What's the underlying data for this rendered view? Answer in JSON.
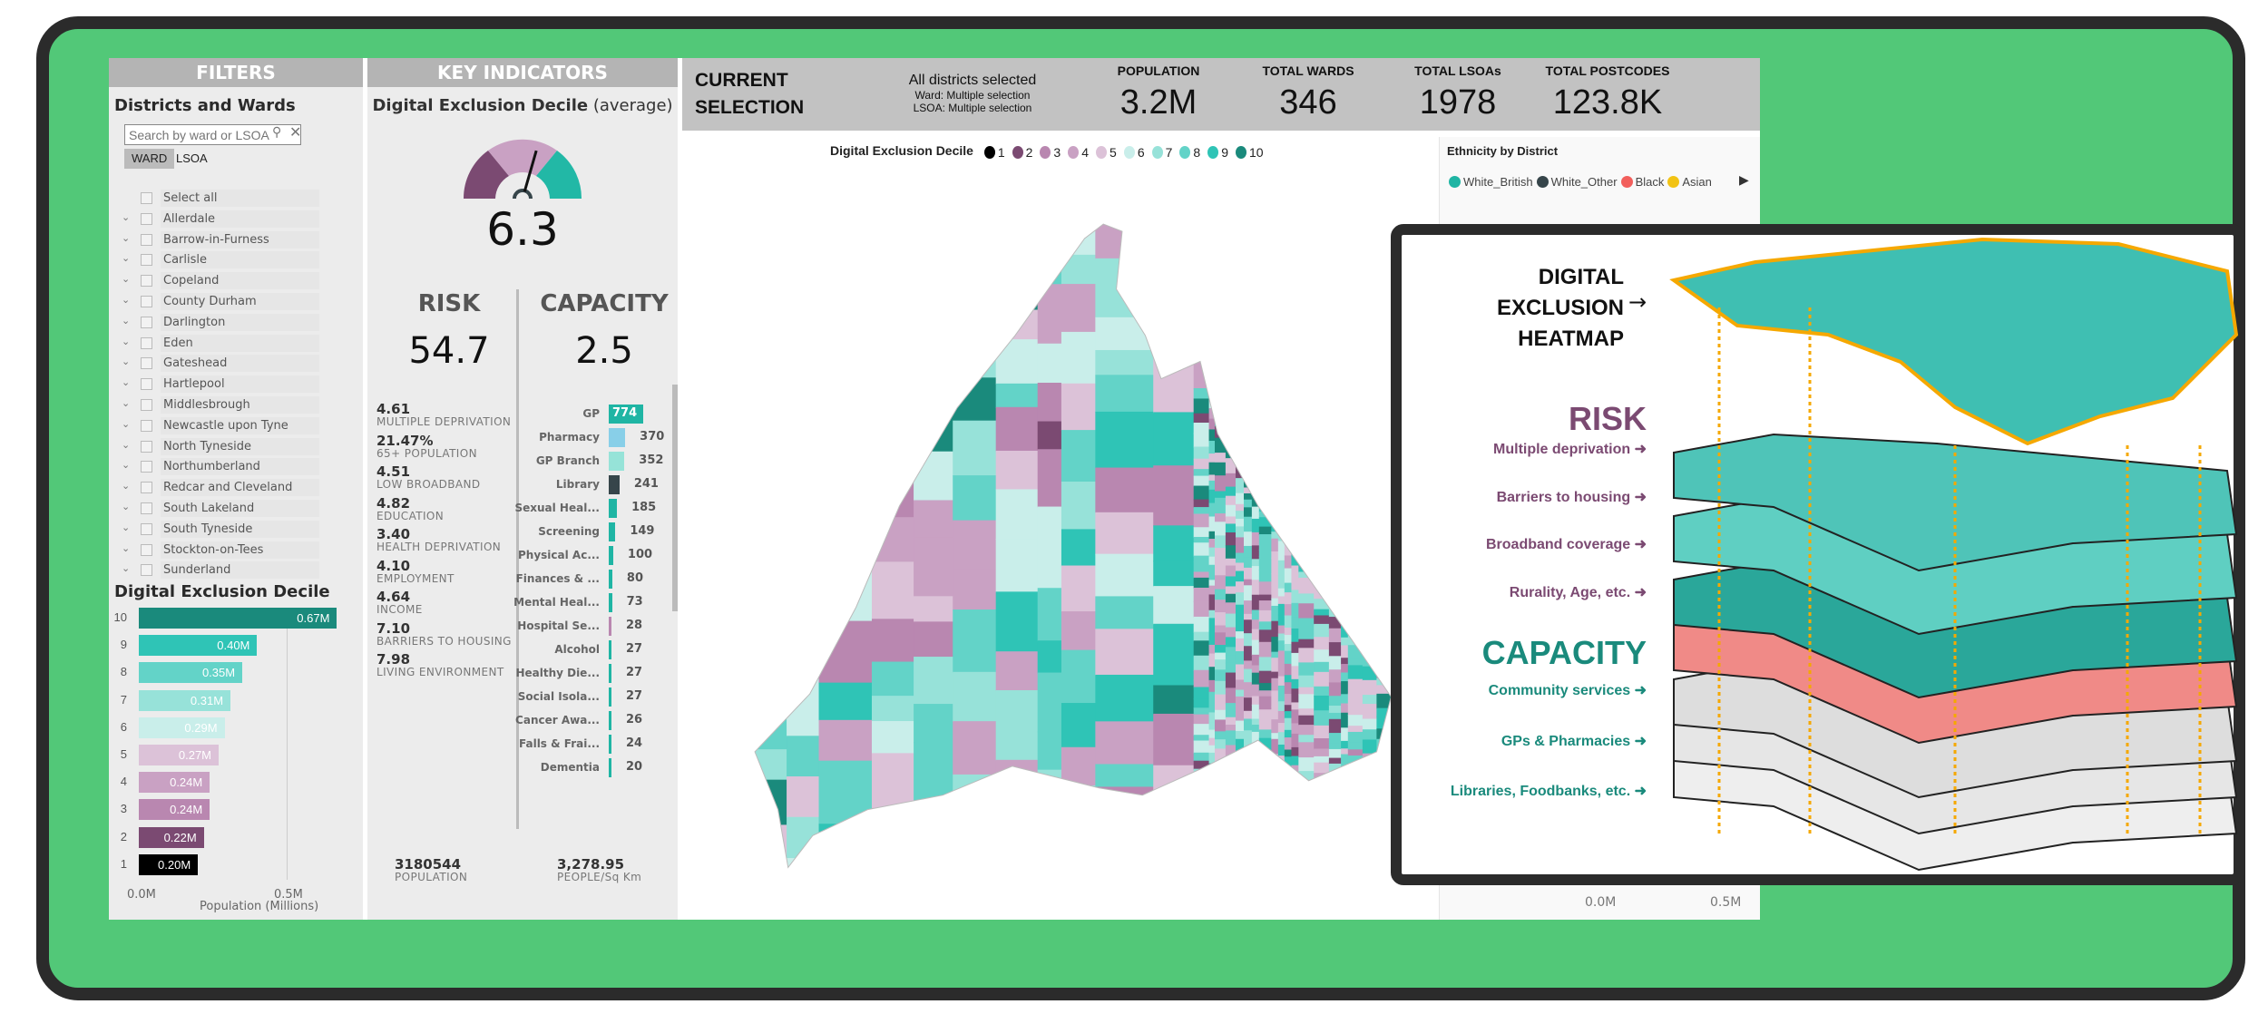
{
  "palette": {
    "1": "#000000",
    "2": "#7b4a72",
    "3": "#b987b0",
    "4": "#c9a1c3",
    "5": "#dcc2d8",
    "6": "#c9eeea",
    "7": "#97e2d9",
    "8": "#63d3c8",
    "9": "#2fc4b6",
    "10": "#1a8a7c"
  },
  "filters": {
    "header": "FILTERS",
    "title": "Districts and Wards",
    "search_placeholder": "Search by ward or LSOA",
    "toggle": [
      "WARD",
      "LSOA"
    ],
    "toggle_selected": "WARD",
    "items": [
      "Select all",
      "Allerdale",
      "Barrow-in-Furness",
      "Carlisle",
      "Copeland",
      "County Durham",
      "Darlington",
      "Eden",
      "Gateshead",
      "Hartlepool",
      "Middlesbrough",
      "Newcastle upon Tyne",
      "North Tyneside",
      "Northumberland",
      "Redcar and Cleveland",
      "South Lakeland",
      "South Tyneside",
      "Stockton-on-Tees",
      "Sunderland"
    ]
  },
  "chart_data": {
    "type": "bar",
    "orientation": "horizontal",
    "title": "Digital Exclusion Decile",
    "xlabel": "Population (Millions)",
    "xlim": [
      0,
      0.7
    ],
    "xticks": [
      "0.0M",
      "0.5M"
    ],
    "categories": [
      "10",
      "9",
      "8",
      "7",
      "6",
      "5",
      "4",
      "3",
      "2",
      "1"
    ],
    "values": [
      0.67,
      0.4,
      0.35,
      0.31,
      0.29,
      0.27,
      0.24,
      0.24,
      0.22,
      0.2
    ],
    "labels": [
      "0.67M",
      "0.40M",
      "0.35M",
      "0.31M",
      "0.29M",
      "0.27M",
      "0.24M",
      "0.24M",
      "0.22M",
      "0.20M"
    ]
  },
  "key": {
    "header": "KEY INDICATORS",
    "gauge_title": "Digital Exclusion Decile",
    "gauge_suffix": "(average)",
    "gauge_value": "6.3",
    "gauge_min": 1,
    "gauge_max": 10,
    "risk_title": "RISK",
    "risk_value": "54.7",
    "capacity_title": "CAPACITY",
    "capacity_value": "2.5",
    "risk_items": [
      {
        "v": "4.61",
        "l": "MULTIPLE DEPRIVATION"
      },
      {
        "v": "21.47%",
        "l": "65+ POPULATION"
      },
      {
        "v": "4.51",
        "l": "LOW BROADBAND"
      },
      {
        "v": "4.82",
        "l": "EDUCATION"
      },
      {
        "v": "3.40",
        "l": "HEALTH DEPRIVATION"
      },
      {
        "v": "4.10",
        "l": "EMPLOYMENT"
      },
      {
        "v": "4.64",
        "l": "INCOME"
      },
      {
        "v": "7.10",
        "l": "BARRIERS TO HOUSING"
      },
      {
        "v": "7.98",
        "l": "LIVING ENVIRONMENT"
      }
    ],
    "capacity_items": [
      {
        "l": "GP",
        "v": 774,
        "c": "#1fb5a4"
      },
      {
        "l": "Pharmacy",
        "v": 370,
        "c": "#88cfe8"
      },
      {
        "l": "GP Branch",
        "v": 352,
        "c": "#96e3d8"
      },
      {
        "l": "Library",
        "v": 241,
        "c": "#36454a"
      },
      {
        "l": "Sexual Heal...",
        "v": 185,
        "c": "#1fb5a4"
      },
      {
        "l": "Screening",
        "v": 149,
        "c": "#1fb5a4"
      },
      {
        "l": "Physical Ac...",
        "v": 100,
        "c": "#1fb5a4"
      },
      {
        "l": "Finances & ...",
        "v": 80,
        "c": "#1fb5a4"
      },
      {
        "l": "Mental Heal...",
        "v": 73,
        "c": "#1fb5a4"
      },
      {
        "l": "Hospital Se...",
        "v": 28,
        "c": "#b987b0"
      },
      {
        "l": "Alcohol",
        "v": 27,
        "c": "#1fb5a4"
      },
      {
        "l": "Healthy Die...",
        "v": 27,
        "c": "#1fb5a4"
      },
      {
        "l": "Social Isola...",
        "v": 27,
        "c": "#1fb5a4"
      },
      {
        "l": "Cancer Awa...",
        "v": 26,
        "c": "#1fb5a4"
      },
      {
        "l": "Falls & Frai...",
        "v": 24,
        "c": "#1fb5a4"
      },
      {
        "l": "Dementia",
        "v": 20,
        "c": "#1fb5a4"
      }
    ],
    "population_value": "3180544",
    "population_label": "POPULATION",
    "density_value": "3,278.95",
    "density_label": "PEOPLE/Sq Km"
  },
  "selection": {
    "title_1": "CURRENT",
    "title_2": "SELECTION",
    "districts": "All districts selected",
    "ward": "Ward: Multiple selection",
    "lsoa": "LSOA: Multiple selection",
    "kpis": [
      {
        "t": "POPULATION",
        "n": "3.2M"
      },
      {
        "t": "TOTAL WARDS",
        "n": "346"
      },
      {
        "t": "TOTAL LSOAs",
        "n": "1978"
      },
      {
        "t": "TOTAL POSTCODES",
        "n": "123.8K"
      }
    ]
  },
  "map": {
    "legend_title": "Digital Exclusion Decile",
    "legend": [
      "1",
      "2",
      "3",
      "4",
      "5",
      "6",
      "7",
      "8",
      "9",
      "10"
    ]
  },
  "ethnicity": {
    "title": "Ethnicity by District",
    "legend": [
      {
        "n": "White_British",
        "c": "#1fb5a4"
      },
      {
        "n": "White_Other",
        "c": "#36454a"
      },
      {
        "n": "Black",
        "c": "#f25f5c"
      },
      {
        "n": "Asian",
        "c": "#f2c314"
      }
    ],
    "xticks": [
      "0.0M",
      "0.5M"
    ]
  },
  "inset": {
    "heatmap": [
      "DIGITAL",
      "EXCLUSION",
      "HEATMAP"
    ],
    "risk": "RISK",
    "risk_items": [
      "Multiple deprivation",
      "Barriers to housing",
      "Broadband coverage",
      "Rurality, Age, etc."
    ],
    "capacity": "CAPACITY",
    "capacity_items": [
      "Community services",
      "GPs & Pharmacies",
      "Libraries, Foodbanks, etc."
    ],
    "risk_color": "#7b4a72",
    "capacity_color": "#1a8a7c",
    "arrow_color": "#f5a800"
  }
}
